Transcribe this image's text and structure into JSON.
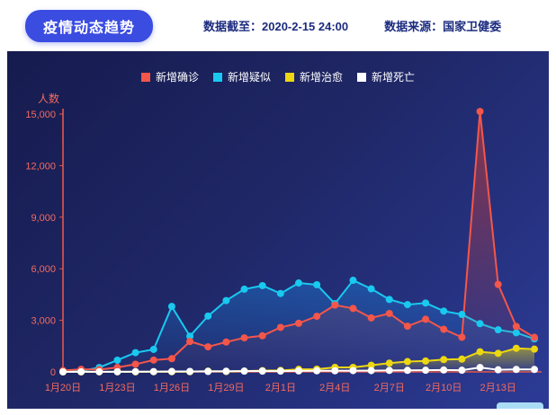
{
  "header": {
    "title": "疫情动态趋势",
    "data_as_of": "数据截至：2020-2-15 24:00",
    "data_source": "数据来源：国家卫健委"
  },
  "chart_data": {
    "type": "line",
    "title": "疫情动态趋势",
    "ylabel": "人数",
    "ylim": [
      0,
      15000
    ],
    "yticks": [
      0,
      3000,
      6000,
      9000,
      12000,
      15000
    ],
    "ytick_labels": [
      "0",
      "3,000",
      "6,000",
      "9,000",
      "12,000",
      "15,000"
    ],
    "axis_color": "#e2574d",
    "tick_label_color": "#f56a5e",
    "legend_position": "top",
    "grid": false,
    "draw_order": [
      1,
      0,
      2,
      3
    ],
    "x": [
      "1月20日",
      "1月21日",
      "1月22日",
      "1月23日",
      "1月24日",
      "1月25日",
      "1月26日",
      "1月27日",
      "1月28日",
      "1月29日",
      "1月30日",
      "1月31日",
      "2月1日",
      "2月2日",
      "2月3日",
      "2月4日",
      "2月5日",
      "2月6日",
      "2月7日",
      "2月8日",
      "2月9日",
      "2月10日",
      "2月11日",
      "2月12日",
      "2月13日",
      "2月14日",
      "2月15日"
    ],
    "x_tick_indices": [
      0,
      3,
      6,
      9,
      12,
      15,
      18,
      21,
      24
    ],
    "series": [
      {
        "key": "confirmed",
        "name": "新增确诊",
        "color": "#f4564a",
        "fill_color": "#e8402e",
        "fill_opacity": 0.5,
        "values": [
          77,
          149,
          131,
          259,
          444,
          688,
          769,
          1771,
          1459,
          1737,
          1982,
          2102,
          2590,
          2829,
          3235,
          3887,
          3694,
          3143,
          3399,
          2656,
          3062,
          2478,
          2015,
          15152,
          5090,
          2641,
          2009
        ]
      },
      {
        "key": "suspected",
        "name": "新增疑似",
        "color": "#19c9ef",
        "fill_color": "#1b7fd8",
        "fill_opacity": 0.45,
        "values": [
          27,
          53,
          257,
          680,
          1118,
          1309,
          3806,
          2077,
          3248,
          4148,
          4812,
          5019,
          4562,
          5173,
          5072,
          3971,
          5328,
          4833,
          4214,
          3916,
          4008,
          3536,
          3342,
          2807,
          2450,
          2277,
          1918
        ]
      },
      {
        "key": "cured",
        "name": "新增治愈",
        "color": "#ecd712",
        "fill_color": "#d8c80a",
        "fill_opacity": 0.55,
        "values": [
          0,
          0,
          3,
          6,
          3,
          11,
          9,
          12,
          43,
          21,
          47,
          72,
          85,
          147,
          157,
          262,
          261,
          387,
          510,
          600,
          632,
          716,
          744,
          1171,
          1081,
          1373,
          1323
        ]
      },
      {
        "key": "deaths",
        "name": "新增死亡",
        "color": "#ffffff",
        "fill_color": null,
        "fill_opacity": 0,
        "values": [
          2,
          8,
          8,
          8,
          16,
          15,
          24,
          26,
          26,
          38,
          43,
          46,
          45,
          57,
          64,
          65,
          73,
          73,
          86,
          89,
          97,
          108,
          97,
          254,
          121,
          143,
          142
        ]
      }
    ]
  }
}
